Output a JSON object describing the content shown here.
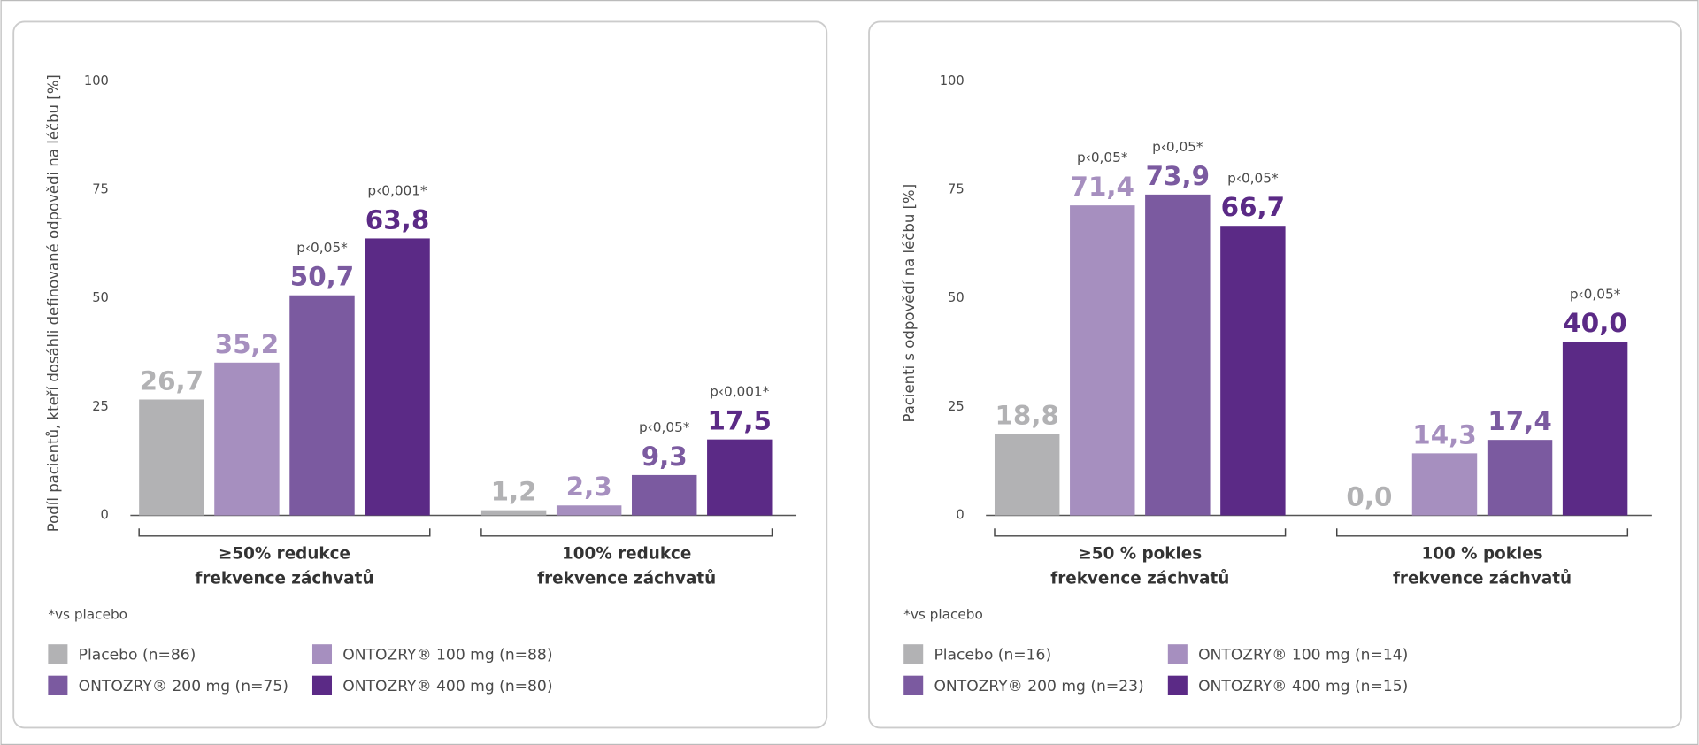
{
  "chart_data": [
    {
      "type": "bar",
      "y_label": "Podíl pacientů, kteří dosáhli definované odpovědi na léčbu [%]",
      "categories": [
        "≥50% redukce\nfrekvence záchvatů",
        "100% redukce\nfrekvence záchvatů"
      ],
      "ylim": [
        0,
        100
      ],
      "yticks": [
        0,
        25,
        50,
        75,
        100
      ],
      "series": [
        {
          "name": "Placebo (n=86)",
          "color": "#b2b2b4",
          "values": [
            26.7,
            1.2
          ],
          "value_labels": [
            "26,7",
            "1,2"
          ],
          "p_labels": [
            null,
            null
          ]
        },
        {
          "name": "ONTOZRY® 100 mg (n=88)",
          "color": "#a68fbf",
          "values": [
            35.2,
            2.3
          ],
          "value_labels": [
            "35,2",
            "2,3"
          ],
          "p_labels": [
            null,
            null
          ]
        },
        {
          "name": "ONTOZRY® 200 mg (n=75)",
          "color": "#7b5aa0",
          "values": [
            50.7,
            9.3
          ],
          "value_labels": [
            "50,7",
            "9,3"
          ],
          "p_labels": [
            "p‹0,05*",
            "p‹0,05*"
          ]
        },
        {
          "name": "ONTOZRY® 400 mg (n=80)",
          "color": "#5b2a86",
          "values": [
            63.8,
            17.5
          ],
          "value_labels": [
            "63,8",
            "17,5"
          ],
          "p_labels": [
            "p‹0,001*",
            "p‹0,001*"
          ]
        }
      ],
      "footnote": "*vs placebo"
    },
    {
      "type": "bar",
      "y_label": "Pacienti s odpovědí na léčbu [%]",
      "categories": [
        "≥50 % pokles\nfrekvence záchvatů",
        "100 % pokles\nfrekvence záchvatů"
      ],
      "ylim": [
        0,
        100
      ],
      "yticks": [
        0,
        25,
        50,
        75,
        100
      ],
      "series": [
        {
          "name": "Placebo (n=16)",
          "color": "#b2b2b4",
          "values": [
            18.8,
            0.0
          ],
          "value_labels": [
            "18,8",
            "0,0"
          ],
          "p_labels": [
            null,
            null
          ]
        },
        {
          "name": "ONTOZRY® 100 mg (n=14)",
          "color": "#a68fbf",
          "values": [
            71.4,
            14.3
          ],
          "value_labels": [
            "71,4",
            "14,3"
          ],
          "p_labels": [
            "p‹0,05*",
            null
          ]
        },
        {
          "name": "ONTOZRY® 200 mg (n=23)",
          "color": "#7b5aa0",
          "values": [
            73.9,
            17.4
          ],
          "value_labels": [
            "73,9",
            "17,4"
          ],
          "p_labels": [
            "p‹0,05*",
            null
          ]
        },
        {
          "name": "ONTOZRY® 400 mg (n=15)",
          "color": "#5b2a86",
          "values": [
            66.7,
            40.0
          ],
          "value_labels": [
            "66,7",
            "40,0"
          ],
          "p_labels": [
            "p‹0,05*",
            "p‹0,05*"
          ]
        }
      ],
      "footnote": "*vs placebo"
    }
  ]
}
